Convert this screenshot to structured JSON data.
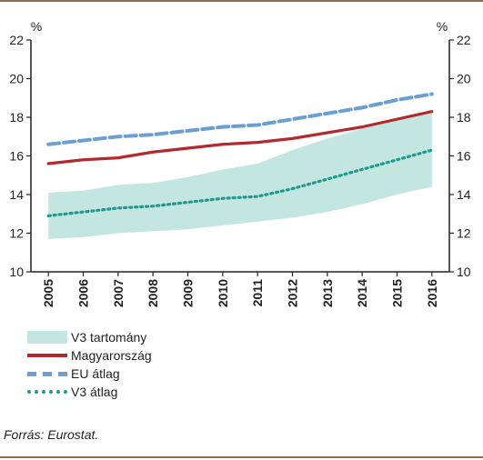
{
  "chart_data": {
    "type": "line",
    "x": [
      "2005",
      "2006",
      "2007",
      "2008",
      "2009",
      "2010",
      "2011",
      "2012",
      "2013",
      "2014",
      "2015",
      "2016"
    ],
    "y_left_unit": "%",
    "y_right_unit": "%",
    "ylim": [
      10,
      22
    ],
    "yticks": [
      10,
      12,
      14,
      16,
      18,
      20,
      22
    ],
    "grid": false,
    "band": {
      "name": "V3 tartomány",
      "color": "#c3e6e1",
      "lower": [
        11.7,
        11.8,
        12.0,
        12.1,
        12.2,
        12.4,
        12.6,
        12.8,
        13.1,
        13.5,
        14.0,
        14.4
      ],
      "upper": [
        14.1,
        14.2,
        14.5,
        14.6,
        14.9,
        15.3,
        15.6,
        16.3,
        16.9,
        17.4,
        17.9,
        18.4
      ]
    },
    "series": [
      {
        "name": "Magyarország",
        "style": "solid",
        "color": "#b22a2e",
        "values": [
          15.6,
          15.8,
          15.9,
          16.2,
          16.4,
          16.6,
          16.7,
          16.9,
          17.2,
          17.5,
          17.9,
          18.3
        ]
      },
      {
        "name": "EU átlag",
        "style": "dashed",
        "color": "#6a9fd1",
        "values": [
          16.6,
          16.8,
          17.0,
          17.1,
          17.3,
          17.5,
          17.6,
          17.9,
          18.2,
          18.5,
          18.9,
          19.2
        ]
      },
      {
        "name": "V3 átlag",
        "style": "dotted",
        "color": "#1f9a8c",
        "values": [
          12.9,
          13.1,
          13.3,
          13.4,
          13.6,
          13.8,
          13.9,
          14.3,
          14.8,
          15.3,
          15.8,
          16.3
        ]
      }
    ],
    "legend_position": "bottom-left"
  },
  "legend": {
    "band_label": "V3 tartomány",
    "hu_label": "Magyarország",
    "eu_label": "EU átlag",
    "v3_label": "V3 átlag"
  },
  "source": "Forrás: Eurostat."
}
